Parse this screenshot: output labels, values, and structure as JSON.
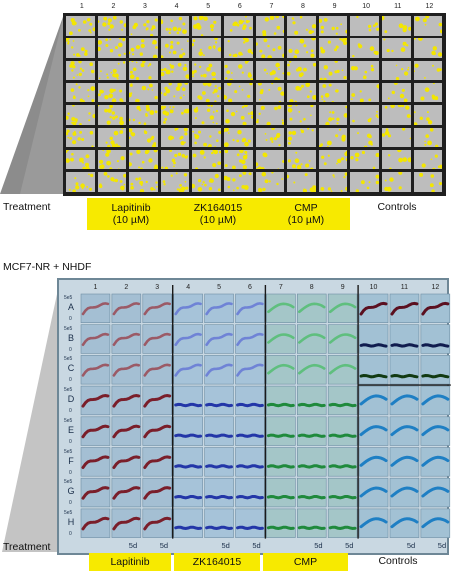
{
  "top": {
    "column_numbers": [
      "1",
      "2",
      "3",
      "4",
      "5",
      "6",
      "7",
      "8",
      "9",
      "10",
      "11",
      "12"
    ],
    "treatment_label": "Treatment",
    "groups": [
      {
        "line1": "Lapitinib",
        "line2": "(10 µM)"
      },
      {
        "line1": "ZK164015",
        "line2": "(10 µM)"
      },
      {
        "line1": "CMP",
        "line2": "(10 µM)"
      }
    ],
    "controls_label": "Controls",
    "well_color": "#bdbdbd",
    "spot_color": "#f3e600"
  },
  "bottom": {
    "cell_line_label": "MCF7-NR + NHDF",
    "column_numbers": [
      "1",
      "2",
      "3",
      "4",
      "5",
      "6",
      "7",
      "8",
      "9",
      "10",
      "11",
      "12"
    ],
    "row_letters": [
      "A",
      "B",
      "C",
      "D",
      "E",
      "F",
      "G",
      "H"
    ],
    "y_max_label": "5e5",
    "y_min_label": "0",
    "x_end_label": "5d",
    "treatment_label": "Treatment",
    "groups": [
      "Lapitinib",
      "ZK164015",
      "CMP"
    ],
    "controls_label": "Controls",
    "group_colors": {
      "lapitinib": "#7a1e2a",
      "zk164015": "#2336a8",
      "cmp": "#1f8a3c",
      "controls": "#1e7fc4"
    }
  }
}
